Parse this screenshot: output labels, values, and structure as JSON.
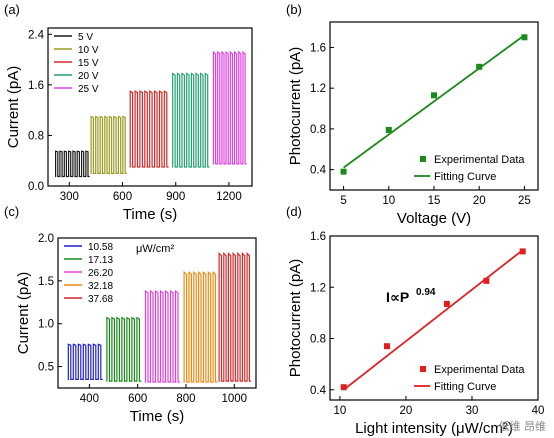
{
  "watermark": "低维 昂维",
  "chart_data": [
    {
      "panel": "(a)",
      "type": "line",
      "xlabel": "Time (s)",
      "ylabel": "Current (pA)",
      "xlim": [
        180,
        1330
      ],
      "ylim": [
        0,
        2.5
      ],
      "xticks": [
        300,
        600,
        900,
        1200
      ],
      "yticks": [
        0.0,
        0.8,
        1.6,
        2.4
      ],
      "ytick_labels": [
        "0.0",
        "0.8",
        "1.6",
        "2.4"
      ],
      "legend_position": "top-left",
      "series": [
        {
          "name": "5 V",
          "color": "#1a1a1a",
          "t_start": 220,
          "t_end": 415,
          "off": 0.15,
          "on": 0.55,
          "pulses": 8
        },
        {
          "name": "10 V",
          "color": "#9a9a1e",
          "t_start": 420,
          "t_end": 625,
          "off": 0.2,
          "on": 1.1,
          "pulses": 8
        },
        {
          "name": "15 V",
          "color": "#d42a2a",
          "t_start": 640,
          "t_end": 860,
          "off": 0.3,
          "on": 1.5,
          "pulses": 8
        },
        {
          "name": "20 V",
          "color": "#25a070",
          "t_start": 880,
          "t_end": 1090,
          "off": 0.3,
          "on": 1.78,
          "pulses": 8
        },
        {
          "name": "25 V",
          "color": "#e040e0",
          "t_start": 1110,
          "t_end": 1300,
          "off": 0.35,
          "on": 2.12,
          "pulses": 8
        }
      ]
    },
    {
      "panel": "(b)",
      "type": "scatter",
      "xlabel": "Voltage (V)",
      "ylabel": "Photocurrent (pA)",
      "xlim": [
        3.5,
        26.5
      ],
      "ylim": [
        0.2,
        1.85
      ],
      "xticks": [
        5,
        10,
        15,
        20,
        25
      ],
      "yticks": [
        0.4,
        0.8,
        1.2,
        1.6
      ],
      "ytick_labels": [
        "0.4",
        "0.8",
        "1.2",
        "1.6"
      ],
      "color": "#1a8a1a",
      "x": [
        5,
        10,
        15,
        20,
        25
      ],
      "y": [
        0.38,
        0.79,
        1.13,
        1.41,
        1.7
      ],
      "fit": {
        "x0": 5,
        "y0": 0.42,
        "x1": 25,
        "y1": 1.72
      },
      "legend": [
        "Experimental Data",
        "Fitting Curve"
      ],
      "legend_position": "bottom-right"
    },
    {
      "panel": "(c)",
      "type": "line",
      "xlabel": "Time (s)",
      "ylabel": "Current (pA)",
      "xlim": [
        270,
        1090
      ],
      "ylim": [
        0.25,
        2.0
      ],
      "xticks": [
        400,
        600,
        800,
        1000
      ],
      "yticks": [
        0.5,
        1.0,
        1.5,
        2.0
      ],
      "ytick_labels": [
        "0.5",
        "1.0",
        "1.5",
        "2.0"
      ],
      "legend_title": "μW/cm²",
      "legend_position": "top-left",
      "series": [
        {
          "name": "10.58",
          "color": "#2020d0",
          "t_start": 310,
          "t_end": 455,
          "off": 0.35,
          "on": 0.76,
          "pulses": 7
        },
        {
          "name": "17.13",
          "color": "#1a8a1a",
          "t_start": 470,
          "t_end": 615,
          "off": 0.33,
          "on": 1.07,
          "pulses": 7
        },
        {
          "name": "26.20",
          "color": "#e040e0",
          "t_start": 630,
          "t_end": 775,
          "off": 0.32,
          "on": 1.38,
          "pulses": 7
        },
        {
          "name": "32.18",
          "color": "#f08a10",
          "t_start": 790,
          "t_end": 930,
          "off": 0.32,
          "on": 1.6,
          "pulses": 7
        },
        {
          "name": "37.68",
          "color": "#d42a2a",
          "t_start": 935,
          "t_end": 1070,
          "off": 0.33,
          "on": 1.82,
          "pulses": 7
        }
      ]
    },
    {
      "panel": "(d)",
      "type": "scatter",
      "xlabel": "Light intensity (μW/cm²)",
      "ylabel": "Photocurrent (pA)",
      "xlim": [
        8.5,
        40
      ],
      "ylim": [
        0.32,
        1.6
      ],
      "xticks": [
        10,
        20,
        30,
        40
      ],
      "yticks": [
        0.4,
        0.8,
        1.2,
        1.6
      ],
      "ytick_labels": [
        "0.4",
        "0.8",
        "1.2",
        "1.6"
      ],
      "color": "#e02020",
      "x": [
        10.58,
        17.13,
        26.2,
        32.18,
        37.68
      ],
      "y": [
        0.42,
        0.74,
        1.07,
        1.25,
        1.48
      ],
      "fit": {
        "x0": 10.58,
        "y0": 0.4,
        "x1": 37.68,
        "y1": 1.49
      },
      "annotation": "I∝P",
      "annotation_sup": "0.94",
      "legend": [
        "Experimental Data",
        "Fitting Curve"
      ],
      "legend_position": "bottom-right"
    }
  ]
}
